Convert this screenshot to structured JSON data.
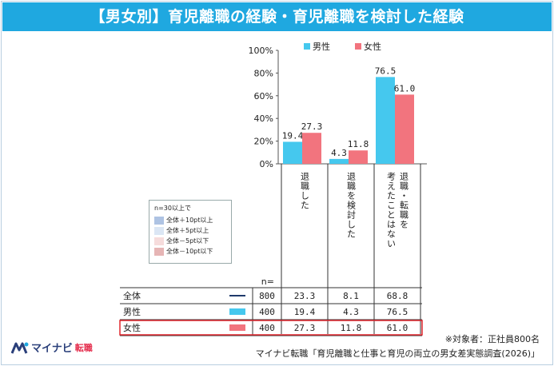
{
  "title": "【男女別】育児離職の経験・育児離職を検討した経験",
  "legend": [
    {
      "name": "男性",
      "color": "#45c8ee"
    },
    {
      "name": "女性",
      "color": "#f2747e"
    }
  ],
  "chart_data": {
    "type": "bar",
    "categories": [
      "退職した",
      "退職を検討した",
      "退職・転職を考えたことはない"
    ],
    "category_labels_vertical": [
      "退\n職\nし\nた",
      "退\n職\nを\n検\n討\nし\nた",
      "退職・転職を|考えたことはない"
    ],
    "series": [
      {
        "name": "男性",
        "values": [
          19.4,
          4.3,
          76.5
        ],
        "color": "#45c8ee"
      },
      {
        "name": "女性",
        "values": [
          27.3,
          11.8,
          61.0
        ],
        "color": "#f2747e"
      }
    ],
    "ylim": [
      0,
      100
    ],
    "yticks": [
      "100%",
      "80%",
      "60%",
      "40%",
      "20%",
      "0%"
    ],
    "grid": false
  },
  "table": {
    "n_header": "n=",
    "rows": [
      {
        "label": "全体",
        "n": "800",
        "values": [
          "23.3",
          "8.1",
          "68.8"
        ],
        "marker": "line",
        "color": "#1f3a6b"
      },
      {
        "label": "男性",
        "n": "400",
        "values": [
          "19.4",
          "4.3",
          "76.5"
        ],
        "marker": "bar",
        "color": "#45c8ee"
      },
      {
        "label": "女性",
        "n": "400",
        "values": [
          "27.3",
          "11.8",
          "61.0"
        ],
        "marker": "bar",
        "color": "#f2747e",
        "highlight": true
      }
    ]
  },
  "significance_legend": {
    "title": "n=30以上で",
    "items": [
      {
        "label": "全体＋10pt以上",
        "color": "#aec3e3"
      },
      {
        "label": "全体＋5pt以上",
        "color": "#dbe6f4"
      },
      {
        "label": "全体－5pt以下",
        "color": "#f6dcdc"
      },
      {
        "label": "全体－10pt以下",
        "color": "#e6b5b5"
      }
    ]
  },
  "footer": {
    "note": "※対象者：正社員800名",
    "source": "マイナビ転職「育児離職と仕事と育児の両立の男女差実態調査(2026)」"
  },
  "logo": {
    "text": "マイナビ",
    "sub": "転職"
  }
}
